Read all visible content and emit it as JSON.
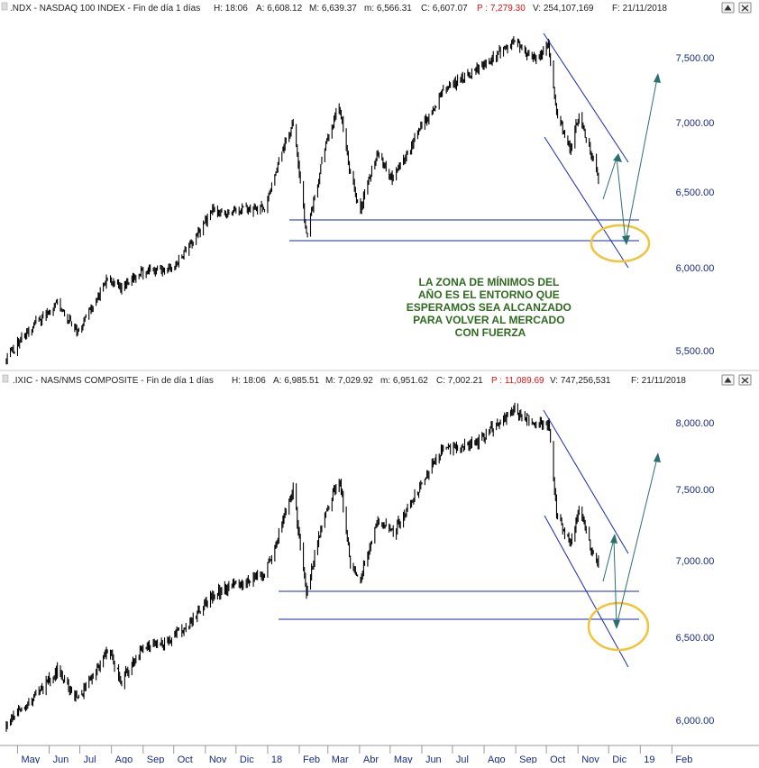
{
  "panels": [
    {
      "header": {
        "prefix": ".NDX - NASDAQ 100 INDEX - Fin de día 1 días",
        "h": "H: 18:06",
        "a": "A: 6,608.12",
        "m": "M: 6,639.37",
        "mlow": "m: 6,566.31",
        "c": "C: 6,607.07",
        "p": "P : 7,279.30",
        "v": "V: 254,107,169",
        "f": "F: 21/11/2018"
      },
      "y_ticks": [
        "7,500.00",
        "7,000.00",
        "6,500.00",
        "6,000.00",
        "5,500.00"
      ],
      "annotation_lines": [
        "LA ZONA DE MÍNIMOS DEL",
        "AÑO ES EL ENTORNO QUE",
        "ESPERAMOS SEA ALCANZADO",
        "PARA VOLVER AL MERCADO",
        "CON FUERZA"
      ]
    },
    {
      "header": {
        "prefix": ".IXIC - NAS/NMS COMPOSITE - Fin de día 1 días",
        "h": "H: 18:06",
        "a": "A: 6,985.51",
        "m": "M: 7,029.92",
        "mlow": "m: 6,951.62",
        "c": "C: 7,002.21",
        "p": "P : 11,089.69",
        "v": "V: 747,256,531",
        "f": "F: 21/11/2018"
      },
      "y_ticks": [
        "8,000.00",
        "7,500.00",
        "7,000.00",
        "6,500.00",
        "6,000.00"
      ]
    }
  ],
  "x_axis_labels": [
    "May",
    "Jun",
    "Jul",
    "Ago",
    "Sep",
    "Oct",
    "Nov",
    "Dic",
    "18",
    "Feb",
    "Mar",
    "Abr",
    "May",
    "Jun",
    "Jul",
    "Ago",
    "Sep",
    "Oct",
    "Nov",
    "Dic",
    "19",
    "Feb"
  ],
  "colors": {
    "price_bars": "#000000",
    "channel_lines": "#1a2ab0",
    "support_lines": "#1a2ab0",
    "projection_arrows": "#2d6f6f",
    "highlight_ellipse": "#f2c43c",
    "annotation_text": "#2f6b1f",
    "axis_labels": "#1a2a80",
    "header_previous_close": "#e01010"
  },
  "chart_data": [
    {
      "type": "ohlc",
      "title": ".NDX - NASDAQ 100 INDEX",
      "ylim": [
        5400,
        7750
      ],
      "x_range": [
        "2017-04-20",
        "2019-02-28"
      ],
      "support_levels": [
        6320,
        6185
      ],
      "series": [
        {
          "name": ".NDX",
          "x": [
            "2017-04-20",
            "2017-05-15",
            "2017-06-09",
            "2017-06-30",
            "2017-07-28",
            "2017-08-11",
            "2017-08-31",
            "2017-09-29",
            "2017-10-20",
            "2017-11-08",
            "2017-11-30",
            "2017-12-29",
            "2018-01-26",
            "2018-02-08",
            "2018-02-26",
            "2018-03-12",
            "2018-03-23",
            "2018-04-02",
            "2018-04-18",
            "2018-05-04",
            "2018-06-20",
            "2018-07-25",
            "2018-08-30",
            "2018-09-21",
            "2018-10-03",
            "2018-10-11",
            "2018-10-24",
            "2018-11-02",
            "2018-11-13",
            "2018-11-21"
          ],
          "y": [
            5450,
            5640,
            5780,
            5610,
            5930,
            5870,
            5980,
            5990,
            6170,
            6370,
            6380,
            6400,
            7020,
            6210,
            6820,
            7140,
            6620,
            6380,
            6780,
            6590,
            7220,
            7420,
            7620,
            7480,
            7620,
            7080,
            6800,
            7070,
            6790,
            6607
          ]
        }
      ]
    },
    {
      "type": "ohlc",
      "title": ".IXIC - NAS/NMS COMPOSITE",
      "ylim": [
        5900,
        8150
      ],
      "x_range": [
        "2017-04-20",
        "2019-02-28"
      ],
      "support_levels": [
        6805,
        6630
      ],
      "series": [
        {
          "name": ".IXIC",
          "x": [
            "2017-04-20",
            "2017-05-15",
            "2017-06-09",
            "2017-06-30",
            "2017-07-28",
            "2017-08-11",
            "2017-08-31",
            "2017-09-29",
            "2017-10-20",
            "2017-11-08",
            "2017-11-30",
            "2017-12-29",
            "2018-01-26",
            "2018-02-08",
            "2018-02-26",
            "2018-03-12",
            "2018-03-23",
            "2018-04-02",
            "2018-04-18",
            "2018-05-04",
            "2018-06-20",
            "2018-07-25",
            "2018-08-30",
            "2018-09-21",
            "2018-10-03",
            "2018-10-11",
            "2018-10-24",
            "2018-11-02",
            "2018-11-13",
            "2018-11-21"
          ],
          "y": [
            5980,
            6120,
            6300,
            6120,
            6420,
            6230,
            6430,
            6490,
            6610,
            6770,
            6840,
            6900,
            7500,
            6780,
            7330,
            7580,
            7000,
            6870,
            7280,
            7190,
            7780,
            7850,
            8100,
            7990,
            7990,
            7330,
            7120,
            7350,
            7100,
            7002
          ]
        }
      ]
    }
  ]
}
